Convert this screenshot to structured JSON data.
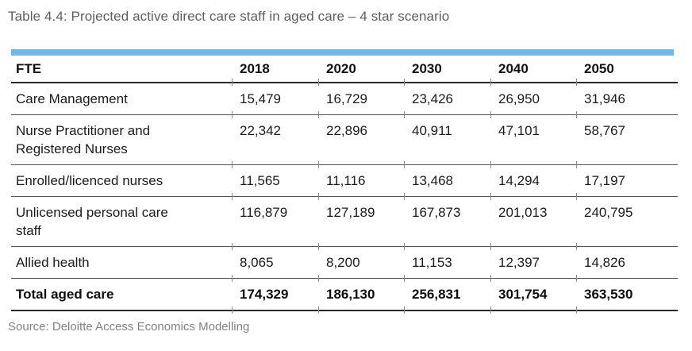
{
  "title": "Table 4.4: Projected active direct care staff in aged care – 4 star scenario",
  "source": "Source: Deloitte Access Economics Modelling",
  "colors": {
    "accent_band": "#72b8e2",
    "title_text": "#5d5e60",
    "source_text": "#808184",
    "rule_dark": "#2a2a2a",
    "rule_row": "#515151"
  },
  "table": {
    "header": [
      "FTE",
      "2018",
      "2020",
      "2030",
      "2040",
      "2050"
    ],
    "rows": [
      {
        "label": "Care Management",
        "values": [
          "15,479",
          "16,729",
          "23,426",
          "26,950",
          "31,946"
        ],
        "total": false
      },
      {
        "label": "Nurse Practitioner and Registered Nurses",
        "values": [
          "22,342",
          "22,896",
          "40,911",
          "47,101",
          "58,767"
        ],
        "total": false
      },
      {
        "label": "Enrolled/licenced nurses",
        "values": [
          "11,565",
          "11,116",
          "13,468",
          "14,294",
          "17,197"
        ],
        "total": false
      },
      {
        "label": "Unlicensed personal care staff",
        "values": [
          "116,879",
          "127,189",
          "167,873",
          "201,013",
          "240,795"
        ],
        "total": false
      },
      {
        "label": "Allied health",
        "values": [
          "8,065",
          "8,200",
          "11,153",
          "12,397",
          "14,826"
        ],
        "total": false
      },
      {
        "label": "Total aged care",
        "values": [
          "174,329",
          "186,130",
          "256,831",
          "301,754",
          "363,530"
        ],
        "total": true
      }
    ]
  },
  "chart_data": {
    "type": "table",
    "title": "Table 4.4: Projected active direct care staff in aged care – 4 star scenario",
    "columns": [
      "FTE",
      "2018",
      "2020",
      "2030",
      "2040",
      "2050"
    ],
    "rows": [
      [
        "Care Management",
        15479,
        16729,
        23426,
        26950,
        31946
      ],
      [
        "Nurse Practitioner and Registered Nurses",
        22342,
        22896,
        40911,
        47101,
        58767
      ],
      [
        "Enrolled/licenced nurses",
        11565,
        11116,
        13468,
        14294,
        17197
      ],
      [
        "Unlicensed personal care staff",
        116879,
        127189,
        167873,
        201013,
        240795
      ],
      [
        "Allied health",
        8065,
        8200,
        11153,
        12397,
        14826
      ],
      [
        "Total aged care",
        174329,
        186130,
        256831,
        301754,
        363530
      ]
    ],
    "source": "Source: Deloitte Access Economics Modelling"
  }
}
